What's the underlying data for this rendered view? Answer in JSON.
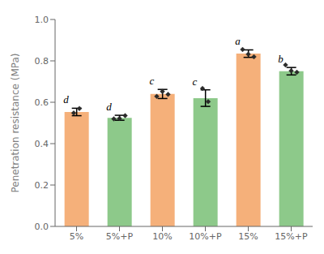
{
  "chart_data": {
    "type": "bar",
    "ylabel": "Penetration resistance (MPa)",
    "categories": [
      "5%",
      "5%+P",
      "10%",
      "10%+P",
      "15%",
      "15%+P"
    ],
    "values": [
      0.553,
      0.525,
      0.64,
      0.62,
      0.835,
      0.75
    ],
    "colors": [
      "#F5B07A",
      "#8DC98A",
      "#F5B07A",
      "#8DC98A",
      "#F5B07A",
      "#8DC98A"
    ],
    "error_bars": [
      0.018,
      0.012,
      0.022,
      0.04,
      0.018,
      0.018
    ],
    "points": {
      "values": [
        [
          0.548,
          0.57
        ],
        [
          0.52,
          0.522,
          0.535
        ],
        [
          0.628,
          0.652,
          0.638
        ],
        [
          0.667,
          0.603
        ],
        [
          0.855,
          0.832,
          0.82
        ],
        [
          0.78,
          0.752,
          0.745
        ]
      ],
      "color": "#2a2a2a",
      "marker": "diamond"
    },
    "annotations": [
      {
        "category": "5%",
        "text": "d"
      },
      {
        "category": "5%+P",
        "text": "d"
      },
      {
        "category": "10%",
        "text": "c"
      },
      {
        "category": "10%+P",
        "text": "c"
      },
      {
        "category": "15%",
        "text": "a"
      },
      {
        "category": "15%+P",
        "text": "b"
      }
    ],
    "ylim": [
      0.0,
      1.0
    ],
    "yticks": [
      {
        "value": 0,
        "label": "0.0"
      },
      0.2,
      0.4,
      0.6,
      0.8,
      {
        "value": 1,
        "label": "1.0"
      }
    ],
    "grid": false
  }
}
